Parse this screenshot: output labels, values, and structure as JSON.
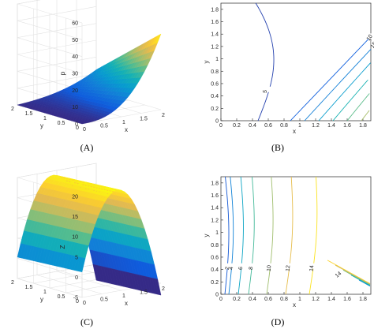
{
  "chart_data": [
    {
      "type": "surface",
      "caption": "(A)",
      "xlabel": "x",
      "ylabel": "y",
      "zlabel": "p",
      "x_ticks": [
        "0",
        "0.5",
        "1",
        "1.5",
        "2"
      ],
      "y_ticks": [
        "0",
        "0.5",
        "1",
        "1.5",
        "2"
      ],
      "z_ticks": [
        "0",
        "10",
        "20",
        "30",
        "40",
        "50",
        "60"
      ],
      "xlim": [
        0,
        2
      ],
      "ylim": [
        0,
        2
      ],
      "zlim": [
        0,
        60
      ],
      "colormap": "parula",
      "z_at_corners": {
        "x0_y0": 0,
        "x2_y0": 45,
        "x0_y2": 0,
        "x2_y2": 8
      }
    },
    {
      "type": "contour",
      "caption": "(B)",
      "xlabel": "x",
      "ylabel": "y",
      "x_ticks": [
        "0",
        "0.2",
        "0.4",
        "0.6",
        "0.8",
        "1",
        "1.2",
        "1.4",
        "1.6",
        "1.8"
      ],
      "y_ticks": [
        "0",
        "0.2",
        "0.4",
        "0.6",
        "0.8",
        "1",
        "1.2",
        "1.4",
        "1.6",
        "1.8"
      ],
      "xlim": [
        0,
        1.9
      ],
      "ylim": [
        0,
        1.9
      ],
      "levels": [
        5,
        10,
        15,
        20,
        25,
        30,
        35,
        40,
        45
      ]
    },
    {
      "type": "surface",
      "caption": "(C)",
      "xlabel": "x",
      "ylabel": "y",
      "zlabel": "Z",
      "x_ticks": [
        "0",
        "0.5",
        "1",
        "1.5",
        "2"
      ],
      "y_ticks": [
        "0",
        "0.5",
        "1",
        "1.5",
        "2"
      ],
      "z_ticks": [
        "-5",
        "0",
        "5",
        "10",
        "15",
        "20"
      ],
      "xlim": [
        0,
        2
      ],
      "ylim": [
        0,
        2
      ],
      "zlim": [
        -5,
        20
      ],
      "colormap": "parula"
    },
    {
      "type": "contour",
      "caption": "(D)",
      "xlabel": "x",
      "ylabel": "y",
      "x_ticks": [
        "0",
        "0.2",
        "0.4",
        "0.6",
        "0.8",
        "1",
        "1.2",
        "1.4",
        "1.6",
        "1.8"
      ],
      "y_ticks": [
        "0",
        "0.2",
        "0.4",
        "0.6",
        "0.8",
        "1",
        "1.2",
        "1.4",
        "1.6",
        "1.8"
      ],
      "xlim": [
        0,
        1.9
      ],
      "ylim": [
        0,
        1.9
      ],
      "levels": [
        2,
        4,
        6,
        8,
        10,
        12,
        14
      ]
    }
  ]
}
